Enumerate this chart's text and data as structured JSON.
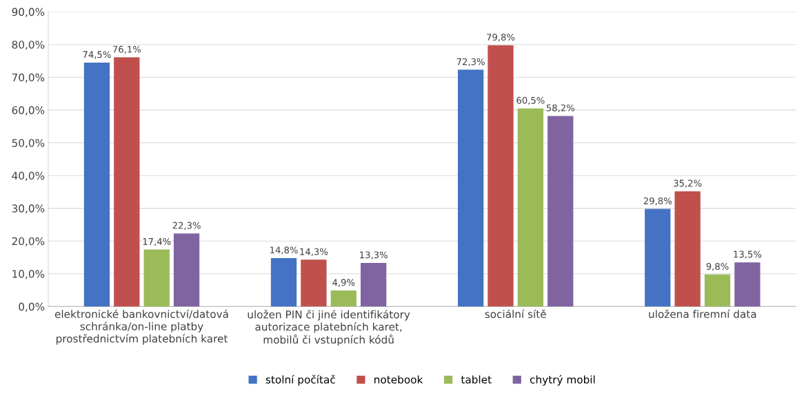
{
  "chart_data": {
    "type": "bar",
    "categories": [
      "elektronické bankovnictví/datová\nschránka/on-line platby\nprostřednictvím platebních karet",
      "uložen PIN či jiné identifikátory\nautorizace platebních karet,\nmobilů či vstupních kódů",
      "sociální sítě",
      "uložena firemní data"
    ],
    "series": [
      {
        "name": "stolní počítač",
        "color": "#4472c4",
        "values": [
          74.5,
          14.8,
          72.3,
          29.8
        ],
        "value_labels": [
          "74,5%",
          "14,8%",
          "72,3%",
          "29,8%"
        ]
      },
      {
        "name": "notebook",
        "color": "#c0504d",
        "values": [
          76.1,
          14.3,
          79.8,
          35.2
        ],
        "value_labels": [
          "76,1%",
          "14,3%",
          "79,8%",
          "35,2%"
        ]
      },
      {
        "name": "tablet",
        "color": "#9bbb59",
        "values": [
          17.4,
          4.9,
          60.5,
          9.8
        ],
        "value_labels": [
          "17,4%",
          "4,9%",
          "60,5%",
          "9,8%"
        ]
      },
      {
        "name": "chytrý mobil",
        "color": "#8064a2",
        "values": [
          22.3,
          13.3,
          58.2,
          13.5
        ],
        "value_labels": [
          "22,3%",
          "13,3%",
          "58,2%",
          "13,5%"
        ]
      }
    ],
    "ylim": [
      0,
      90
    ],
    "yticks": [
      {
        "value": 0,
        "label": "0,0%"
      },
      {
        "value": 10,
        "label": "10,0%"
      },
      {
        "value": 20,
        "label": "20,0%"
      },
      {
        "value": 30,
        "label": "30,0%"
      },
      {
        "value": 40,
        "label": "40,0%"
      },
      {
        "value": 50,
        "label": "50,0%"
      },
      {
        "value": 60,
        "label": "60,0%"
      },
      {
        "value": 70,
        "label": "70,0%"
      },
      {
        "value": 80,
        "label": "80,0%"
      },
      {
        "value": 90,
        "label": "90,0%"
      }
    ],
    "grid": "y",
    "legend": "bottom"
  }
}
